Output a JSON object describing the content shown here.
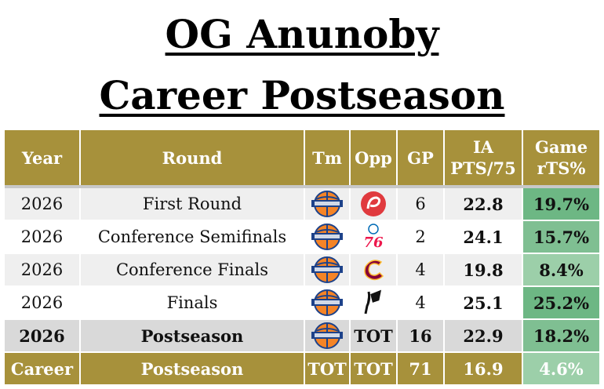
{
  "header": {
    "title": [
      "OG Anunoby",
      "Career Postseason"
    ]
  },
  "table": {
    "columns": [
      "Year",
      "Round",
      "Tm",
      "Opp",
      "GP",
      [
        "IA",
        "PTS/75"
      ],
      [
        "Game",
        "rTS%"
      ]
    ],
    "rows": [
      {
        "year": "2026",
        "round": "First Round",
        "gp": "6",
        "ia": "22.8",
        "rts": "19.7%"
      },
      {
        "year": "2026",
        "round": "Conference Semifinals",
        "gp": "2",
        "ia": "24.1",
        "rts": "15.7%"
      },
      {
        "year": "2026",
        "round": "Conference Finals",
        "gp": "4",
        "ia": "19.8",
        "rts": "8.4%"
      },
      {
        "year": "2026",
        "round": "Finals",
        "gp": "4",
        "ia": "25.1",
        "rts": "25.2%"
      },
      {
        "year": "2026",
        "round": "Postseason",
        "opp": "TOT",
        "gp": "16",
        "ia": "22.9",
        "rts": "18.2%"
      },
      {
        "year": "Career",
        "round": "Postseason",
        "tm": "TOT",
        "opp": "TOT",
        "gp": "71",
        "ia": "16.9",
        "rts": "4.6%"
      }
    ]
  }
}
